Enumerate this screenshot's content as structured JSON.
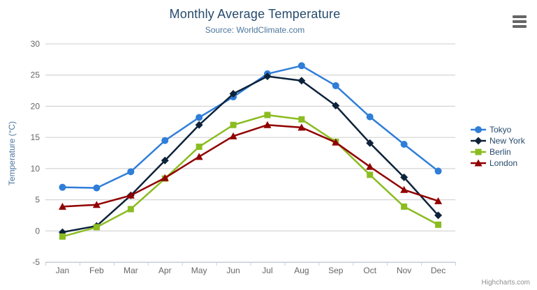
{
  "chart_data": {
    "type": "line",
    "title": "Monthly Average Temperature",
    "subtitle": "Source: WorldClimate.com",
    "categories": [
      "Jan",
      "Feb",
      "Mar",
      "Apr",
      "May",
      "Jun",
      "Jul",
      "Aug",
      "Sep",
      "Oct",
      "Nov",
      "Dec"
    ],
    "series": [
      {
        "name": "Tokyo",
        "color": "#2f7ed8",
        "marker": "circle",
        "values": [
          7.0,
          6.9,
          9.5,
          14.5,
          18.2,
          21.5,
          25.2,
          26.5,
          23.3,
          18.3,
          13.9,
          9.6
        ]
      },
      {
        "name": "New York",
        "color": "#0d233a",
        "marker": "diamond",
        "values": [
          -0.2,
          0.8,
          5.7,
          11.3,
          17.0,
          22.0,
          24.8,
          24.1,
          20.1,
          14.1,
          8.6,
          2.5
        ]
      },
      {
        "name": "Berlin",
        "color": "#8bbc21",
        "marker": "square",
        "values": [
          -0.9,
          0.6,
          3.5,
          8.4,
          13.5,
          17.0,
          18.6,
          17.9,
          14.3,
          9.0,
          3.9,
          1.0
        ]
      },
      {
        "name": "London",
        "color": "#910000",
        "marker": "triangle",
        "values": [
          3.9,
          4.2,
          5.7,
          8.5,
          11.9,
          15.2,
          17.0,
          16.6,
          14.2,
          10.3,
          6.6,
          4.8
        ]
      }
    ],
    "xlabel": "",
    "ylabel": "Temperature (°C)",
    "ylim": [
      -5,
      30
    ],
    "ytick_step": 5,
    "yticks": [
      -5,
      0,
      5,
      10,
      15,
      20,
      25,
      30
    ],
    "grid": true,
    "legend_position": "right"
  },
  "colors": {
    "title": "#274b6d",
    "subtitle": "#4d759e",
    "axis_title": "#4d759e",
    "axis_label": "#666666",
    "axis_line": "#c0d0e0",
    "grid_line": "#cccccc",
    "legend_text": "#274b6d",
    "export_icon": "#666666",
    "credit": "#909090"
  },
  "icons": {
    "export_menu": "hamburger-icon"
  },
  "credits": {
    "label": "Highcharts.com"
  }
}
